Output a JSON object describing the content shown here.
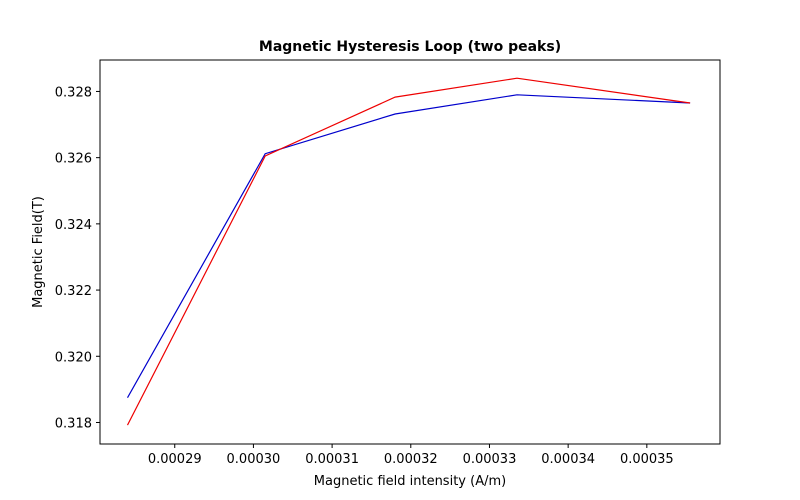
{
  "chart_data": {
    "type": "line",
    "title": "Magnetic Hysteresis Loop (two peaks)",
    "xlabel": "Magnetic field intensity (A/m)",
    "ylabel": "Magnetic Field(T)",
    "xlim": [
      0.0002805,
      0.0003593
    ],
    "ylim": [
      0.31735,
      0.32895
    ],
    "x_ticks": [
      "0.00029",
      "0.00030",
      "0.00031",
      "0.00032",
      "0.00033",
      "0.00034",
      "0.00035"
    ],
    "y_ticks": [
      "0.318",
      "0.320",
      "0.322",
      "0.324",
      "0.326",
      "0.328"
    ],
    "grid": false,
    "series": [
      {
        "color": "#0000cc",
        "x": [
          0.000284,
          0.0003015,
          0.000318,
          0.0003335,
          0.0003555
        ],
        "y": [
          0.31875,
          0.32612,
          0.32732,
          0.3279,
          0.32765
        ]
      },
      {
        "color": "#ee0000",
        "x": [
          0.000284,
          0.0003015,
          0.000318,
          0.0003335,
          0.0003555
        ],
        "y": [
          0.31792,
          0.32605,
          0.32783,
          0.3284,
          0.32765
        ]
      }
    ]
  }
}
